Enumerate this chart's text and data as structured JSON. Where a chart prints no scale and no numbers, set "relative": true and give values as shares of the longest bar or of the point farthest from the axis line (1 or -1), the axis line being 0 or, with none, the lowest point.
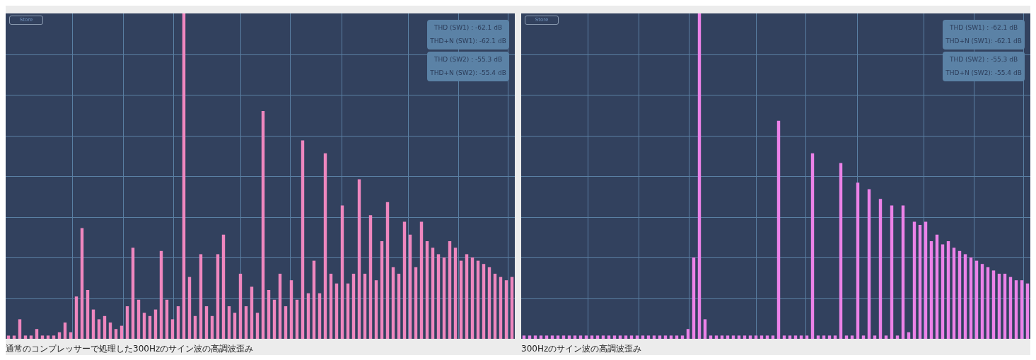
{
  "chart_data": [
    {
      "type": "bar",
      "title": "通常のコンプレッサーで処理した300Hzのサイン波の高調波歪み",
      "relative": true,
      "annotations": [
        "Store",
        "THD (SW1) : -62.1 dB",
        "THD+N (SW1): -62.1 dB",
        "THD (SW2) : -55.3 dB",
        "THD+N (SW2): -55.4 dB"
      ],
      "categories": [
        null,
        null,
        null,
        null,
        null,
        null,
        null,
        null,
        null,
        null,
        null,
        null,
        null,
        null,
        null,
        null,
        null,
        null,
        null,
        null,
        null,
        null,
        null,
        null,
        null,
        null,
        null,
        null,
        null,
        null,
        null,
        null,
        null,
        null,
        null,
        null,
        null,
        null,
        null,
        null,
        null,
        null,
        null,
        null,
        null,
        null,
        null,
        null,
        null,
        null,
        null,
        null,
        null,
        null,
        null,
        null,
        null,
        null,
        null,
        null,
        null,
        null,
        null,
        null,
        null,
        null,
        null,
        null,
        null,
        null,
        null,
        null,
        null,
        null,
        null,
        null,
        null,
        null,
        null,
        null,
        null,
        null,
        null,
        null,
        null,
        null,
        null,
        null,
        null,
        null
      ],
      "color": "#ef87bf",
      "values": [
        0.01,
        0.01,
        0.06,
        0.01,
        0.01,
        0.03,
        0.01,
        0.01,
        0.01,
        0.02,
        0.05,
        0.02,
        0.13,
        0.34,
        0.15,
        0.09,
        0.06,
        0.07,
        0.05,
        0.03,
        0.04,
        0.1,
        0.28,
        0.12,
        0.08,
        0.07,
        0.09,
        0.27,
        0.12,
        0.06,
        0.1,
        1,
        0.19,
        0.07,
        0.26,
        0.1,
        0.07,
        0.26,
        0.32,
        0.1,
        0.08,
        0.2,
        0.1,
        0.16,
        0.08,
        0.7,
        0.15,
        0.12,
        0.2,
        0.1,
        0.18,
        0.12,
        0.61,
        0.14,
        0.24,
        0.14,
        0.57,
        0.2,
        0.17,
        0.41,
        0.17,
        0.2,
        0.49,
        0.2,
        0.38,
        0.18,
        0.3,
        0.42,
        0.22,
        0.2,
        0.36,
        0.32,
        0.22,
        0.36,
        0.3,
        0.28,
        0.26,
        0.25,
        0.3,
        0.28,
        0.24,
        0.26,
        0.25,
        0.24,
        0.23,
        0.22,
        0.2,
        0.19,
        0.18,
        0.19
      ]
    },
    {
      "type": "bar",
      "title": "300Hzのサイン波の高調波歪み",
      "relative": true,
      "annotations": [
        "Store",
        "THD (SW1) : -62.1 dB",
        "THD+N (SW1): -62.1 dB",
        "THD (SW2) : -55.3 dB",
        "THD+N (SW2): -55.4 dB"
      ],
      "categories": [
        null,
        null,
        null,
        null,
        null,
        null,
        null,
        null,
        null,
        null,
        null,
        null,
        null,
        null,
        null,
        null,
        null,
        null,
        null,
        null,
        null,
        null,
        null,
        null,
        null,
        null,
        null,
        null,
        null,
        null,
        null,
        null,
        null,
        null,
        null,
        null,
        null,
        null,
        null,
        null,
        null,
        null,
        null,
        null,
        null,
        null,
        null,
        null,
        null,
        null,
        null,
        null,
        null,
        null,
        null,
        null,
        null,
        null,
        null,
        null,
        null,
        null,
        null,
        null,
        null,
        null,
        null,
        null,
        null,
        null,
        null,
        null,
        null,
        null,
        null,
        null,
        null,
        null,
        null,
        null,
        null,
        null,
        null,
        null,
        null,
        null,
        null,
        null,
        null,
        null
      ],
      "color": "#ec82e8",
      "values": [
        0.01,
        0.01,
        0.01,
        0.01,
        0.01,
        0.01,
        0.01,
        0.01,
        0.01,
        0.01,
        0.01,
        0.01,
        0.01,
        0.01,
        0.01,
        0.01,
        0.01,
        0.01,
        0.01,
        0.01,
        0.01,
        0.01,
        0.01,
        0.01,
        0.01,
        0.01,
        0.01,
        0.01,
        0.01,
        0.03,
        0.25,
        1,
        0.06,
        0.01,
        0.01,
        0.01,
        0.01,
        0.01,
        0.01,
        0.01,
        0.01,
        0.01,
        0.01,
        0.01,
        0.01,
        0.67,
        0.01,
        0.01,
        0.01,
        0.01,
        0.01,
        0.57,
        0.01,
        0.01,
        0.01,
        0.01,
        0.54,
        0.01,
        0.01,
        0.48,
        0.01,
        0.46,
        0.01,
        0.43,
        0.01,
        0.41,
        0.01,
        0.41,
        0.02,
        0.36,
        0.35,
        0.36,
        0.3,
        0.32,
        0.29,
        0.3,
        0.28,
        0.27,
        0.26,
        0.25,
        0.24,
        0.23,
        0.22,
        0.21,
        0.2,
        0.2,
        0.19,
        0.18,
        0.18,
        0.17
      ]
    }
  ]
}
